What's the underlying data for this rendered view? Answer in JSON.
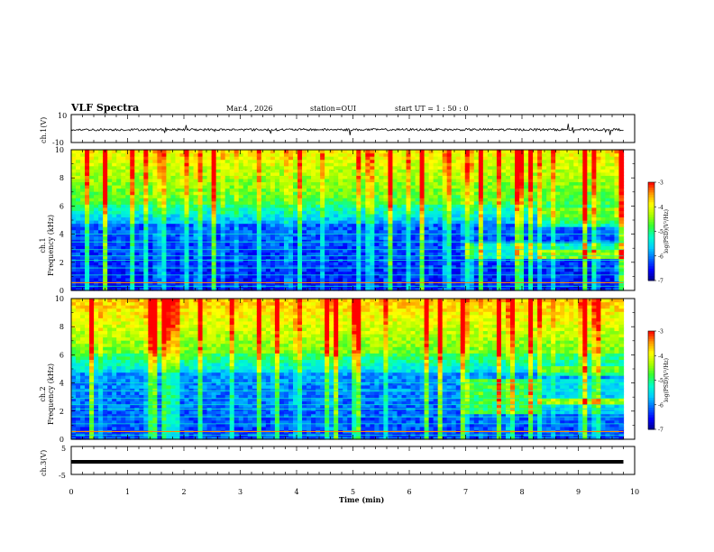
{
  "chart_data": {
    "type": "heatmap",
    "title": "VLF Spectra",
    "date": "Mar.4 , 2026",
    "station": "station=OUI",
    "start": "start  UT =  1 : 50 : 0",
    "xlabel": "Time  (min)",
    "xlim": [
      0,
      10
    ],
    "x_ticks": [
      "0",
      "1",
      "2",
      "3",
      "4",
      "5",
      "6",
      "7",
      "8",
      "9",
      "10"
    ],
    "data_end_min": 9.8,
    "panels": [
      {
        "name": "ch1-waveform",
        "ylabel": "ch.1(V)",
        "ylim": [
          -10,
          10
        ],
        "y_ticks": [
          "10",
          "-10"
        ]
      },
      {
        "name": "ch1-spectrogram",
        "ylabel": "ch.1\nFrequency (kHz)",
        "ylim": [
          0,
          10
        ],
        "y_ticks": [
          "0",
          "2",
          "4",
          "6",
          "8",
          "10"
        ]
      },
      {
        "name": "ch2-spectrogram",
        "ylabel": "ch.2\nFrequency (kHz)",
        "ylim": [
          0,
          10
        ],
        "y_ticks": [
          "0",
          "2",
          "4",
          "6",
          "8",
          "10"
        ]
      },
      {
        "name": "ch3-waveform",
        "ylabel": "ch.3(V)",
        "ylim": [
          -5,
          5
        ],
        "y_ticks": [
          "5",
          "-5"
        ],
        "constant_value": -0.5
      }
    ],
    "colorbar": {
      "label": "log(PSD)(V²/Hz)",
      "range": [
        -7,
        -3
      ],
      "ticks": [
        "-3",
        "-4",
        "-5",
        "-6",
        "-7"
      ]
    }
  },
  "colors": {
    "scale": [
      "#00008b",
      "#0000ff",
      "#0066ff",
      "#00ccff",
      "#00ffcc",
      "#33ff33",
      "#aaff00",
      "#ffff00",
      "#ff9900",
      "#ff0000",
      "#ffffff"
    ]
  }
}
